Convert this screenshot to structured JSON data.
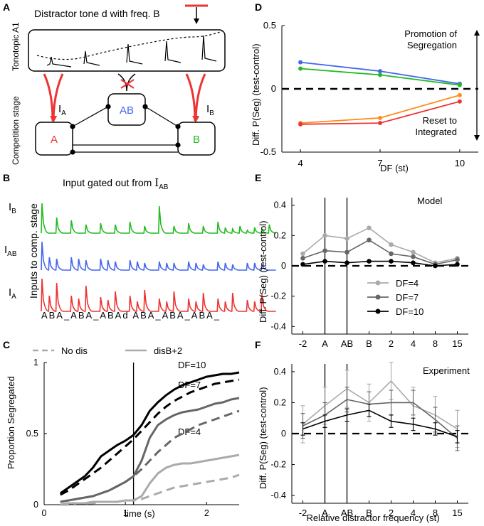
{
  "panel_letters": {
    "A": "A",
    "B": "B",
    "C": "C",
    "D": "D",
    "E": "E",
    "F": "F"
  },
  "colors": {
    "red": "#ee3333",
    "green": "#22bb22",
    "blue": "#4466ee",
    "orange": "#ff8c1a",
    "light": "#aaaaaa",
    "mid": "#666666",
    "dark": "#000000"
  },
  "panel_a": {
    "distractor_title": "Distractor tone d with freq. B",
    "tonotopic_label": "Tonotopic A1",
    "competition_label": "Competition stage",
    "unit_a": "A",
    "unit_ab": "AB",
    "unit_b": "B",
    "input_a": "I",
    "input_a_sub": "A",
    "input_b": "I",
    "input_b_sub": "B"
  },
  "panel_b": {
    "title": "Input gated out from ",
    "title_sym": "I",
    "title_sub": "AB",
    "ylabel": "Inputs to comp. stage",
    "trace_labels": [
      {
        "sym": "I",
        "sub": "B"
      },
      {
        "sym": "I",
        "sub": "AB"
      },
      {
        "sym": "I",
        "sub": "A"
      }
    ],
    "sequence": "ABA_ABA_ABAd ABA_ABA_ABA_"
  },
  "chart_data": [
    {
      "id": "C",
      "type": "line",
      "title": "",
      "xlabel": "time (s)",
      "ylabel": "Proportion Segregated",
      "xlim": [
        0,
        2.4
      ],
      "ylim": [
        0,
        1
      ],
      "xticks": [
        "0",
        "1",
        "2"
      ],
      "yticks": [
        "0",
        "0.5",
        "1"
      ],
      "legend": {
        "no_dis": "No dis",
        "dis": "disB+2"
      },
      "vline_x": 1.1,
      "annotations": [
        "DF=10",
        "DF=7",
        "DF=4"
      ],
      "x": [
        0.2,
        0.3,
        0.4,
        0.5,
        0.6,
        0.7,
        0.8,
        0.9,
        1.0,
        1.1,
        1.2,
        1.3,
        1.4,
        1.5,
        1.6,
        1.7,
        1.8,
        1.9,
        2.0,
        2.1,
        2.2,
        2.3,
        2.4
      ],
      "series": [
        {
          "name": "DF=10 no dis",
          "style": "dashed",
          "color": "#000000",
          "values": [
            0.07,
            0.1,
            0.14,
            0.18,
            0.22,
            0.26,
            0.31,
            0.36,
            0.41,
            0.46,
            0.52,
            0.58,
            0.64,
            0.69,
            0.73,
            0.76,
            0.79,
            0.81,
            0.83,
            0.85,
            0.86,
            0.87,
            0.88
          ]
        },
        {
          "name": "DF=10 disB+2",
          "style": "solid",
          "color": "#000000",
          "values": [
            0.08,
            0.12,
            0.16,
            0.2,
            0.26,
            0.34,
            0.38,
            0.42,
            0.45,
            0.49,
            0.56,
            0.66,
            0.72,
            0.77,
            0.81,
            0.84,
            0.86,
            0.88,
            0.9,
            0.91,
            0.92,
            0.92,
            0.93
          ]
        },
        {
          "name": "DF=7 no dis",
          "style": "dashed",
          "color": "#666666",
          "values": [
            0.02,
            0.03,
            0.04,
            0.05,
            0.06,
            0.08,
            0.1,
            0.13,
            0.16,
            0.2,
            0.25,
            0.31,
            0.37,
            0.42,
            0.47,
            0.5,
            0.53,
            0.56,
            0.58,
            0.6,
            0.62,
            0.64,
            0.66
          ]
        },
        {
          "name": "DF=7 disB+2",
          "style": "solid",
          "color": "#666666",
          "values": [
            0.02,
            0.03,
            0.04,
            0.05,
            0.06,
            0.08,
            0.1,
            0.13,
            0.16,
            0.2,
            0.31,
            0.47,
            0.56,
            0.6,
            0.63,
            0.65,
            0.66,
            0.67,
            0.69,
            0.71,
            0.72,
            0.74,
            0.75
          ]
        },
        {
          "name": "DF=4 no dis",
          "style": "dashed",
          "color": "#aaaaaa",
          "values": [
            0.0,
            0.0,
            0.01,
            0.01,
            0.01,
            0.02,
            0.02,
            0.02,
            0.03,
            0.03,
            0.04,
            0.06,
            0.08,
            0.1,
            0.12,
            0.13,
            0.14,
            0.15,
            0.16,
            0.17,
            0.18,
            0.19,
            0.21
          ]
        },
        {
          "name": "DF=4 disB+2",
          "style": "solid",
          "color": "#aaaaaa",
          "values": [
            0.0,
            0.01,
            0.01,
            0.01,
            0.02,
            0.02,
            0.02,
            0.02,
            0.03,
            0.03,
            0.06,
            0.15,
            0.22,
            0.26,
            0.28,
            0.29,
            0.29,
            0.3,
            0.31,
            0.32,
            0.33,
            0.34,
            0.35
          ]
        }
      ]
    },
    {
      "id": "D",
      "type": "line",
      "xlabel": "DF (st)",
      "ylabel": "Diff. P(Seg) (test-control)",
      "xlim": [
        3.3,
        10.7
      ],
      "ylim": [
        -0.5,
        0.5
      ],
      "xticks": [
        "4",
        "7",
        "10"
      ],
      "yticks": [
        "-0.5",
        "0",
        "0.5"
      ],
      "x": [
        4,
        7,
        10
      ],
      "annotations": {
        "promotion": [
          "Promotion of",
          "Segregation"
        ],
        "reset": [
          "Reset to",
          "Integrated"
        ]
      },
      "series": [
        {
          "name": "blue",
          "color": "#4466ee",
          "values": [
            0.21,
            0.14,
            0.04
          ]
        },
        {
          "name": "green",
          "color": "#22bb22",
          "values": [
            0.16,
            0.11,
            0.03
          ]
        },
        {
          "name": "orange",
          "color": "#ff8c1a",
          "values": [
            -0.27,
            -0.23,
            -0.05
          ]
        },
        {
          "name": "red",
          "color": "#ee3333",
          "values": [
            -0.28,
            -0.27,
            -0.1
          ]
        }
      ]
    },
    {
      "id": "E",
      "type": "line",
      "title": "Model",
      "ylabel": "Diff. P(Seg) (test-control)",
      "ylim": [
        -0.45,
        0.45
      ],
      "yticks": [
        "0.4",
        "0.2",
        "0",
        "-0.2",
        "-0.4"
      ],
      "vlines_between": [
        "A|AB",
        "AB|B"
      ],
      "legend": [
        "DF=4",
        "DF=7",
        "DF=10"
      ],
      "series": [
        {
          "name": "DF=4",
          "color": "#aaaaaa",
          "values": [
            0.08,
            0.2,
            0.18,
            0.25,
            0.14,
            0.09,
            0.02,
            0.05
          ]
        },
        {
          "name": "DF=7",
          "color": "#666666",
          "values": [
            0.05,
            0.1,
            0.09,
            0.17,
            0.08,
            0.06,
            0.01,
            0.04
          ]
        },
        {
          "name": "DF=10",
          "color": "#000000",
          "values": [
            0.01,
            0.03,
            0.02,
            0.03,
            0.03,
            0.02,
            0.0,
            0.01
          ]
        }
      ]
    },
    {
      "id": "F",
      "type": "line",
      "title": "Experiment",
      "xlabel": "Relative distractor frequency (st)",
      "ylabel": "Diff. P(Seg) (test-control)",
      "categories": [
        "-2",
        "A",
        "AB",
        "B",
        "2",
        "4",
        "8",
        "15"
      ],
      "ylim": [
        -0.45,
        0.45
      ],
      "yticks": [
        "0.4",
        "0.2",
        "0",
        "-0.2",
        "-0.4"
      ],
      "vlines_between": [
        "A|AB",
        "AB|B"
      ],
      "series": [
        {
          "name": "DF=4",
          "color": "#aaaaaa",
          "err": 0.12,
          "values": [
            0.06,
            0.18,
            0.29,
            0.2,
            0.34,
            0.18,
            0.12,
            0.03
          ]
        },
        {
          "name": "DF=7",
          "color": "#666666",
          "err": 0.08,
          "values": [
            0.05,
            0.12,
            0.22,
            0.19,
            0.2,
            0.2,
            0.09,
            -0.03
          ]
        },
        {
          "name": "DF=10",
          "color": "#000000",
          "err": 0.04,
          "values": [
            0.03,
            0.08,
            0.12,
            0.15,
            0.08,
            0.06,
            0.03,
            -0.02
          ]
        }
      ]
    }
  ]
}
